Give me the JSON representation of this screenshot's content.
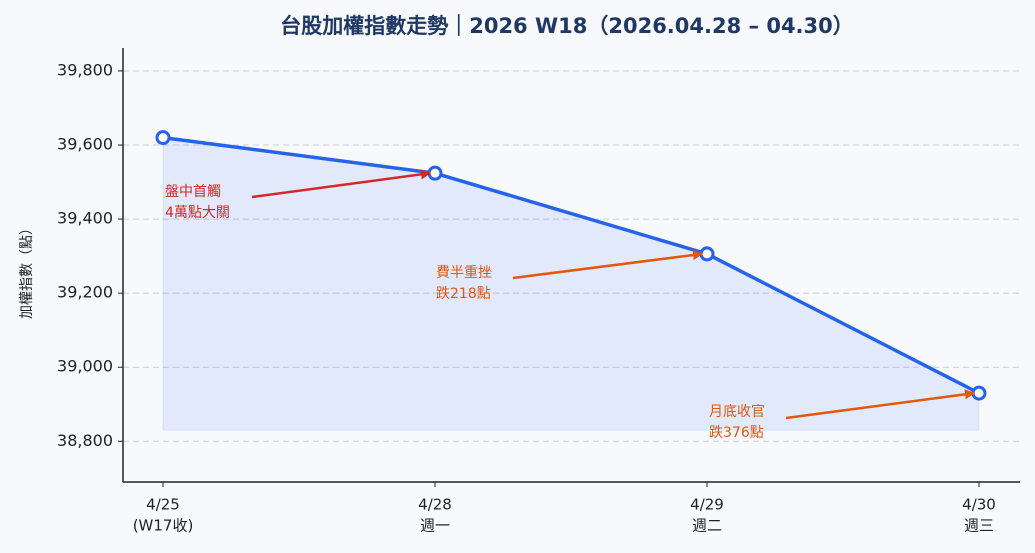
{
  "chart_data": {
    "type": "line",
    "title": "台股加權指數走勢｜2026 W18（2026.04.28 – 04.30）",
    "ylabel": "加權指數（點）",
    "categories": [
      "4/25",
      "4/28",
      "4/29",
      "4/30"
    ],
    "category_sublabels": [
      "(W17收)",
      "週一",
      "週二",
      "週三"
    ],
    "values": [
      39620,
      39524,
      39306,
      38930
    ],
    "color": "#2563eb",
    "ylim": [
      38690,
      39862
    ],
    "yticks": [
      {
        "value": 38800,
        "label": "38,800"
      },
      {
        "value": 39000,
        "label": "39,000"
      },
      {
        "value": 39200,
        "label": "39,200"
      },
      {
        "value": 39400,
        "label": "39,400"
      },
      {
        "value": 39600,
        "label": "39,600"
      },
      {
        "value": 39800,
        "label": "39,800"
      }
    ],
    "grid": true,
    "annotations": [
      {
        "lines": [
          "盤中首觸",
          "4萬點大關"
        ],
        "point": 1,
        "color": "#d62728"
      },
      {
        "lines": [
          "費半重挫",
          "跌218點"
        ],
        "point": 2,
        "color": "#e4570e"
      },
      {
        "lines": [
          "月底收官",
          "跌376點"
        ],
        "point": 3,
        "color": "#e4570e"
      }
    ]
  }
}
